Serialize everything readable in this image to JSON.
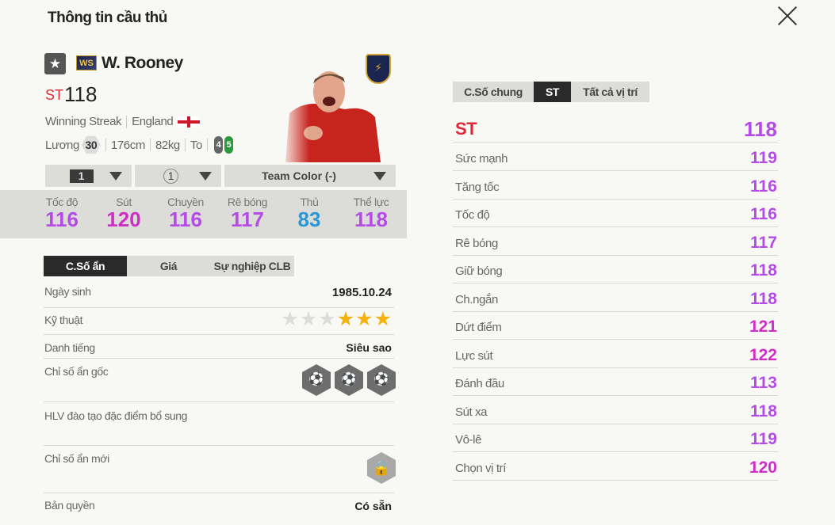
{
  "title": "Thông tin cầu thủ",
  "player": {
    "name": "W. Rooney",
    "season_badge": "WS",
    "position": "ST",
    "overall": "118",
    "season_name": "Winning Streak",
    "nation": "England",
    "salary_label": "Lương",
    "salary": "30",
    "height": "176cm",
    "weight": "82kg",
    "body_type": "To",
    "left_foot": "4",
    "right_foot": "5"
  },
  "selectors": {
    "upgrade": "1",
    "level": "1",
    "team_color": "Team Color (-)"
  },
  "summary_stats": [
    {
      "label": "Tốc độ",
      "value": "116",
      "color": "#b54be6"
    },
    {
      "label": "Sút",
      "value": "120",
      "color": "#cf2fc6"
    },
    {
      "label": "Chuyền",
      "value": "116",
      "color": "#b54be6"
    },
    {
      "label": "Rê bóng",
      "value": "117",
      "color": "#b54be6"
    },
    {
      "label": "Thủ",
      "value": "83",
      "color": "#2a98d8"
    },
    {
      "label": "Thể lực",
      "value": "118",
      "color": "#b54be6"
    }
  ],
  "left_tabs": [
    "C.Số ẩn",
    "Giá",
    "Sự nghiệp CLB"
  ],
  "info": {
    "birth_label": "Ngày sinh",
    "birth": "1985.10.24",
    "skill_label": "Kỹ thuật",
    "skill_stars": 3,
    "skill_max": 6,
    "reputation_label": "Danh tiếng",
    "reputation": "Siêu sao",
    "traits_label": "Chỉ số ẩn gốc",
    "traits_icons": [
      "finesse-shot-icon",
      "power-header-icon",
      "long-shot-icon"
    ],
    "coach_label": "HLV đào tạo đặc điểm bổ sung",
    "new_traits_label": "Chỉ số ẩn mới",
    "license_label": "Bản quyền",
    "license": "Có sẵn"
  },
  "right_tabs": [
    "C.Số chung",
    "ST",
    "Tất cả vị trí"
  ],
  "position_stats": {
    "position": "ST",
    "overall": "118",
    "position_color": "#e0283a",
    "rows": [
      {
        "label": "Sức mạnh",
        "value": "119",
        "color": "#b54be6"
      },
      {
        "label": "Tăng tốc",
        "value": "116",
        "color": "#b54be6"
      },
      {
        "label": "Tốc độ",
        "value": "116",
        "color": "#b54be6"
      },
      {
        "label": "Rê bóng",
        "value": "117",
        "color": "#b54be6"
      },
      {
        "label": "Giữ bóng",
        "value": "118",
        "color": "#b54be6"
      },
      {
        "label": "Ch.ngắn",
        "value": "118",
        "color": "#b54be6"
      },
      {
        "label": "Dứt điểm",
        "value": "121",
        "color": "#cf2fc6"
      },
      {
        "label": "Lực sút",
        "value": "122",
        "color": "#cf2fc6"
      },
      {
        "label": "Đánh đầu",
        "value": "113",
        "color": "#b54be6"
      },
      {
        "label": "Sút xa",
        "value": "118",
        "color": "#b54be6"
      },
      {
        "label": "Vô-lê",
        "value": "119",
        "color": "#b54be6"
      },
      {
        "label": "Chọn vị trí",
        "value": "120",
        "color": "#cf2fc6"
      }
    ]
  }
}
